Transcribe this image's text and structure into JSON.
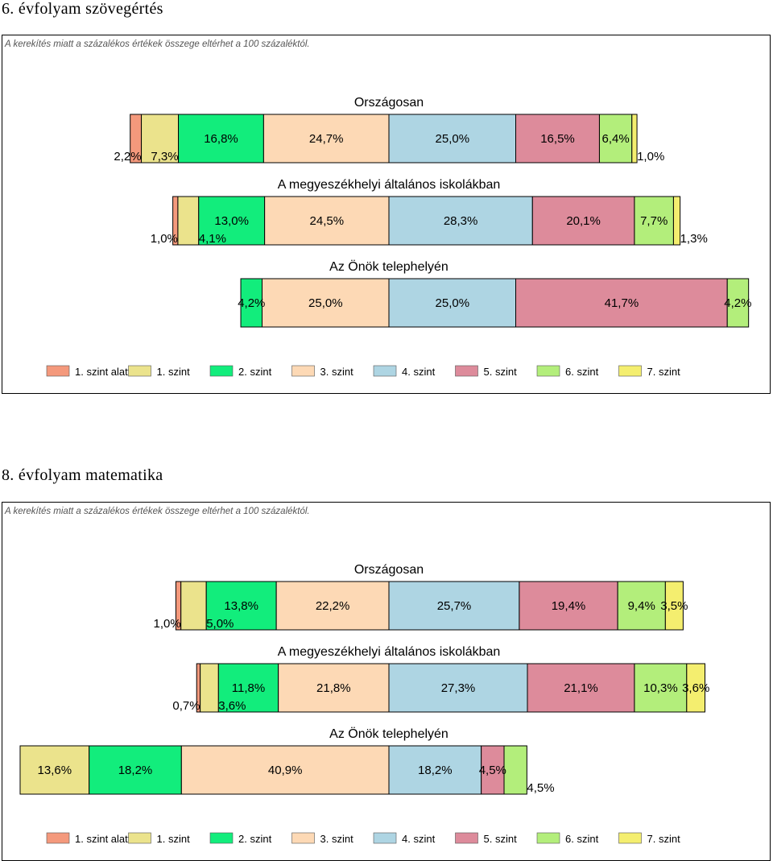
{
  "charts": [
    {
      "section_title": "6. évfolyam szövegértés",
      "note": "A kerekítés miatt a százalékos értékek összege eltérhet a 100 százaléktól.",
      "chart_data": {
        "type": "bar",
        "stacked": true,
        "orientation": "horizontal",
        "levels": [
          "1. szint alatti",
          "1. szint",
          "2. szint",
          "3. szint",
          "4. szint",
          "5. szint",
          "6. szint",
          "7. szint"
        ],
        "groups": [
          {
            "title": "Országosan",
            "values": [
              2.2,
              7.3,
              16.8,
              24.7,
              25.0,
              16.5,
              6.4,
              1.0
            ],
            "labels": [
              "2,2%",
              "7,3%",
              "16,8%",
              "24,7%",
              "25,0%",
              "16,5%",
              "6,4%",
              "1,0%"
            ]
          },
          {
            "title": "A megyeszékhelyi általános iskolákban",
            "values": [
              1.0,
              4.1,
              13.0,
              24.5,
              28.3,
              20.1,
              7.7,
              1.3
            ],
            "labels": [
              "1,0%",
              "4,1%",
              "13,0%",
              "24,5%",
              "28,3%",
              "20,1%",
              "7,7%",
              "1,3%"
            ]
          },
          {
            "title": "Az Önök telephelyén",
            "values": [
              0,
              0,
              4.2,
              25.0,
              25.0,
              41.7,
              4.2,
              0
            ],
            "labels": [
              "",
              "",
              "4,2%",
              "25,0%",
              "25,0%",
              "41,7%",
              "4,2%",
              ""
            ]
          }
        ]
      }
    },
    {
      "section_title": "8. évfolyam matematika",
      "note": "A kerekítés miatt a százalékos értékek összege eltérhet a 100 százaléktól.",
      "chart_data": {
        "type": "bar",
        "stacked": true,
        "orientation": "horizontal",
        "levels": [
          "1. szint alatti",
          "1. szint",
          "2. szint",
          "3. szint",
          "4. szint",
          "5. szint",
          "6. szint",
          "7. szint"
        ],
        "groups": [
          {
            "title": "Országosan",
            "values": [
              1.0,
              5.0,
              13.8,
              22.2,
              25.7,
              19.4,
              9.4,
              3.5
            ],
            "labels": [
              "1,0%",
              "5,0%",
              "13,8%",
              "22,2%",
              "25,7%",
              "19,4%",
              "9,4%",
              "3,5%"
            ]
          },
          {
            "title": "A megyeszékhelyi általános iskolákban",
            "values": [
              0.7,
              3.6,
              11.8,
              21.8,
              27.3,
              21.1,
              10.3,
              3.6
            ],
            "labels": [
              "0,7%",
              "3,6%",
              "11,8%",
              "21,8%",
              "27,3%",
              "21,1%",
              "10,3%",
              "3,6%"
            ]
          },
          {
            "title": "Az Önök telephelyén",
            "values": [
              0,
              13.6,
              18.2,
              40.9,
              18.2,
              4.5,
              4.5,
              0
            ],
            "labels": [
              "",
              "13,6%",
              "18,2%",
              "40,9%",
              "18,2%",
              "4,5%",
              "4,5%",
              ""
            ]
          }
        ]
      }
    }
  ],
  "colors": [
    "#f4997c",
    "#ebe38c",
    "#12ed7c",
    "#fdd9b5",
    "#aed5e3",
    "#dd8b9b",
    "#b3ee7b",
    "#f4ee6f"
  ]
}
